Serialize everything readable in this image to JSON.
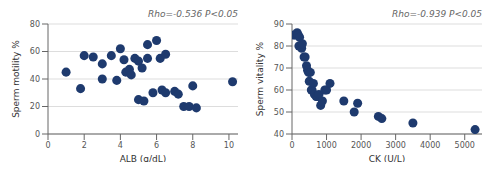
{
  "chart_data": [
    {
      "type": "scatter",
      "title": "Rho=-0.536 P<0.05",
      "xlabel": "ALB (g/dL)",
      "ylabel": "Sperm motility %",
      "xlim": [
        0,
        10.5
      ],
      "ylim": [
        0,
        80
      ],
      "xticks": [
        0,
        2,
        4,
        6,
        8,
        10
      ],
      "yticks": [
        0,
        20,
        40,
        60,
        80
      ],
      "x": [
        1.0,
        1.8,
        2.0,
        2.5,
        3.0,
        3.0,
        3.5,
        3.8,
        4.0,
        4.2,
        4.3,
        4.5,
        4.6,
        4.8,
        5.0,
        5.0,
        5.2,
        5.3,
        5.5,
        5.5,
        5.8,
        6.0,
        6.2,
        6.3,
        6.5,
        6.5,
        7.0,
        7.2,
        7.5,
        7.8,
        8.0,
        8.2,
        10.2
      ],
      "values": [
        45,
        33,
        57,
        56,
        51,
        40,
        57,
        39,
        62,
        54,
        45,
        47,
        43,
        55,
        53,
        25,
        48,
        24,
        65,
        55,
        30,
        68,
        55,
        32,
        58,
        30,
        31,
        29,
        20,
        20,
        35,
        19,
        38
      ],
      "color": "#1e3a6e",
      "grid": true
    },
    {
      "type": "scatter",
      "title": "Rho=-0.939 P<0.05",
      "xlabel": "CK (U/L)",
      "ylabel": "Sperm vitality %",
      "xlim": [
        0,
        5500
      ],
      "ylim": [
        40,
        90
      ],
      "xticks": [
        0,
        1000,
        2000,
        3000,
        4000,
        5000
      ],
      "yticks": [
        40,
        50,
        60,
        70,
        80,
        90
      ],
      "x": [
        50,
        100,
        150,
        180,
        200,
        220,
        280,
        300,
        350,
        380,
        420,
        450,
        480,
        500,
        530,
        560,
        580,
        620,
        650,
        700,
        730,
        780,
        830,
        880,
        950,
        1000,
        1100,
        1500,
        1800,
        1900,
        2500,
        2600,
        3500,
        5300
      ],
      "values": [
        85,
        85,
        86,
        85,
        80,
        84,
        79,
        81,
        75,
        75,
        71,
        69,
        68,
        64,
        68,
        60,
        60,
        63,
        58,
        57,
        57,
        58,
        53,
        55,
        60,
        60,
        63,
        55,
        50,
        54,
        48,
        47,
        45,
        42
      ],
      "color": "#1e3a6e",
      "grid": true
    }
  ]
}
